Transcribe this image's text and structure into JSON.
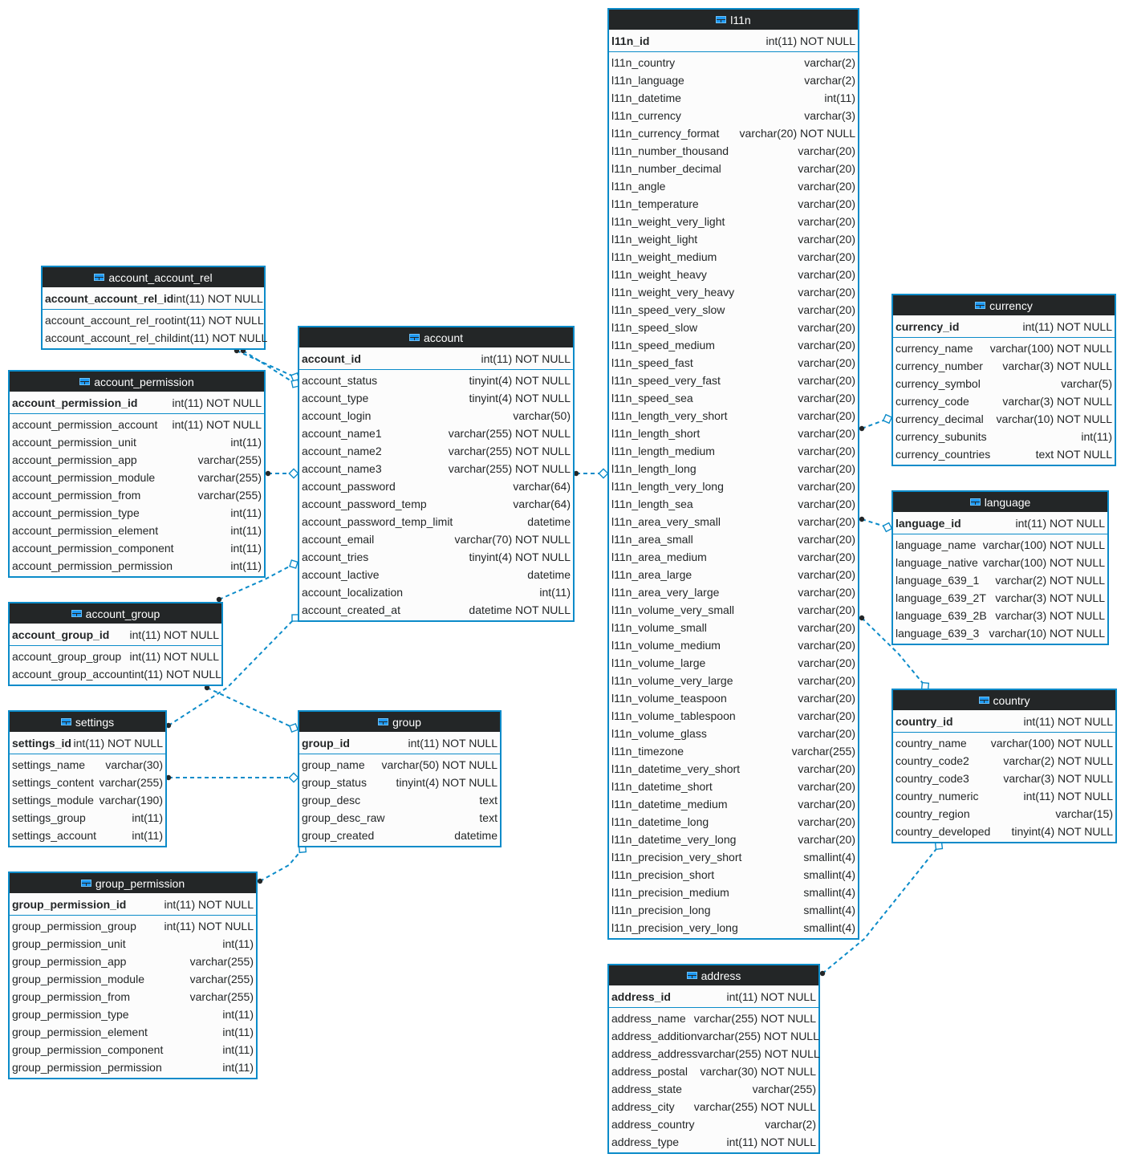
{
  "colors": {
    "border": "#0b8bc9",
    "header": "#232627",
    "link": "#0b8bc9",
    "icon": "#1d99f3"
  },
  "tables": [
    {
      "name": "account_account_rel",
      "pk": {
        "name": "account_account_rel_id",
        "type": "int(11) NOT NULL"
      },
      "columns": [
        {
          "name": "account_account_rel_root",
          "type": "int(11) NOT NULL"
        },
        {
          "name": "account_account_rel_child",
          "type": "int(11) NOT NULL"
        }
      ]
    },
    {
      "name": "account_permission",
      "pk": {
        "name": "account_permission_id",
        "type": "int(11) NOT NULL"
      },
      "columns": [
        {
          "name": "account_permission_account",
          "type": "int(11) NOT NULL"
        },
        {
          "name": "account_permission_unit",
          "type": "int(11)"
        },
        {
          "name": "account_permission_app",
          "type": "varchar(255)"
        },
        {
          "name": "account_permission_module",
          "type": "varchar(255)"
        },
        {
          "name": "account_permission_from",
          "type": "varchar(255)"
        },
        {
          "name": "account_permission_type",
          "type": "int(11)"
        },
        {
          "name": "account_permission_element",
          "type": "int(11)"
        },
        {
          "name": "account_permission_component",
          "type": "int(11)"
        },
        {
          "name": "account_permission_permission",
          "type": "int(11)"
        }
      ]
    },
    {
      "name": "account_group",
      "pk": {
        "name": "account_group_id",
        "type": "int(11) NOT NULL"
      },
      "columns": [
        {
          "name": "account_group_group",
          "type": "int(11) NOT NULL"
        },
        {
          "name": "account_group_account",
          "type": "int(11) NOT NULL"
        }
      ]
    },
    {
      "name": "settings",
      "pk": {
        "name": "settings_id",
        "type": "int(11) NOT NULL"
      },
      "columns": [
        {
          "name": "settings_name",
          "type": "varchar(30)"
        },
        {
          "name": "settings_content",
          "type": "varchar(255)"
        },
        {
          "name": "settings_module",
          "type": "varchar(190)"
        },
        {
          "name": "settings_group",
          "type": "int(11)"
        },
        {
          "name": "settings_account",
          "type": "int(11)"
        }
      ]
    },
    {
      "name": "group_permission",
      "pk": {
        "name": "group_permission_id",
        "type": "int(11) NOT NULL"
      },
      "columns": [
        {
          "name": "group_permission_group",
          "type": "int(11) NOT NULL"
        },
        {
          "name": "group_permission_unit",
          "type": "int(11)"
        },
        {
          "name": "group_permission_app",
          "type": "varchar(255)"
        },
        {
          "name": "group_permission_module",
          "type": "varchar(255)"
        },
        {
          "name": "group_permission_from",
          "type": "varchar(255)"
        },
        {
          "name": "group_permission_type",
          "type": "int(11)"
        },
        {
          "name": "group_permission_element",
          "type": "int(11)"
        },
        {
          "name": "group_permission_component",
          "type": "int(11)"
        },
        {
          "name": "group_permission_permission",
          "type": "int(11)"
        }
      ]
    },
    {
      "name": "account",
      "pk": {
        "name": "account_id",
        "type": "int(11) NOT NULL"
      },
      "columns": [
        {
          "name": "account_status",
          "type": "tinyint(4) NOT NULL"
        },
        {
          "name": "account_type",
          "type": "tinyint(4) NOT NULL"
        },
        {
          "name": "account_login",
          "type": "varchar(50)"
        },
        {
          "name": "account_name1",
          "type": "varchar(255) NOT NULL"
        },
        {
          "name": "account_name2",
          "type": "varchar(255) NOT NULL"
        },
        {
          "name": "account_name3",
          "type": "varchar(255) NOT NULL"
        },
        {
          "name": "account_password",
          "type": "varchar(64)"
        },
        {
          "name": "account_password_temp",
          "type": "varchar(64)"
        },
        {
          "name": "account_password_temp_limit",
          "type": "datetime"
        },
        {
          "name": "account_email",
          "type": "varchar(70) NOT NULL"
        },
        {
          "name": "account_tries",
          "type": "tinyint(4) NOT NULL"
        },
        {
          "name": "account_lactive",
          "type": "datetime"
        },
        {
          "name": "account_localization",
          "type": "int(11)"
        },
        {
          "name": "account_created_at",
          "type": "datetime NOT NULL"
        }
      ]
    },
    {
      "name": "group",
      "pk": {
        "name": "group_id",
        "type": "int(11) NOT NULL"
      },
      "columns": [
        {
          "name": "group_name",
          "type": "varchar(50) NOT NULL"
        },
        {
          "name": "group_status",
          "type": "tinyint(4) NOT NULL"
        },
        {
          "name": "group_desc",
          "type": "text"
        },
        {
          "name": "group_desc_raw",
          "type": "text"
        },
        {
          "name": "group_created",
          "type": "datetime"
        }
      ]
    },
    {
      "name": "l11n",
      "pk": {
        "name": "l11n_id",
        "type": "int(11) NOT NULL"
      },
      "columns": [
        {
          "name": "l11n_country",
          "type": "varchar(2)"
        },
        {
          "name": "l11n_language",
          "type": "varchar(2)"
        },
        {
          "name": "l11n_datetime",
          "type": "int(11)"
        },
        {
          "name": "l11n_currency",
          "type": "varchar(3)"
        },
        {
          "name": "l11n_currency_format",
          "type": "varchar(20) NOT NULL"
        },
        {
          "name": "l11n_number_thousand",
          "type": "varchar(20)"
        },
        {
          "name": "l11n_number_decimal",
          "type": "varchar(20)"
        },
        {
          "name": "l11n_angle",
          "type": "varchar(20)"
        },
        {
          "name": "l11n_temperature",
          "type": "varchar(20)"
        },
        {
          "name": "l11n_weight_very_light",
          "type": "varchar(20)"
        },
        {
          "name": "l11n_weight_light",
          "type": "varchar(20)"
        },
        {
          "name": "l11n_weight_medium",
          "type": "varchar(20)"
        },
        {
          "name": "l11n_weight_heavy",
          "type": "varchar(20)"
        },
        {
          "name": "l11n_weight_very_heavy",
          "type": "varchar(20)"
        },
        {
          "name": "l11n_speed_very_slow",
          "type": "varchar(20)"
        },
        {
          "name": "l11n_speed_slow",
          "type": "varchar(20)"
        },
        {
          "name": "l11n_speed_medium",
          "type": "varchar(20)"
        },
        {
          "name": "l11n_speed_fast",
          "type": "varchar(20)"
        },
        {
          "name": "l11n_speed_very_fast",
          "type": "varchar(20)"
        },
        {
          "name": "l11n_speed_sea",
          "type": "varchar(20)"
        },
        {
          "name": "l11n_length_very_short",
          "type": "varchar(20)"
        },
        {
          "name": "l11n_length_short",
          "type": "varchar(20)"
        },
        {
          "name": "l11n_length_medium",
          "type": "varchar(20)"
        },
        {
          "name": "l11n_length_long",
          "type": "varchar(20)"
        },
        {
          "name": "l11n_length_very_long",
          "type": "varchar(20)"
        },
        {
          "name": "l11n_length_sea",
          "type": "varchar(20)"
        },
        {
          "name": "l11n_area_very_small",
          "type": "varchar(20)"
        },
        {
          "name": "l11n_area_small",
          "type": "varchar(20)"
        },
        {
          "name": "l11n_area_medium",
          "type": "varchar(20)"
        },
        {
          "name": "l11n_area_large",
          "type": "varchar(20)"
        },
        {
          "name": "l11n_area_very_large",
          "type": "varchar(20)"
        },
        {
          "name": "l11n_volume_very_small",
          "type": "varchar(20)"
        },
        {
          "name": "l11n_volume_small",
          "type": "varchar(20)"
        },
        {
          "name": "l11n_volume_medium",
          "type": "varchar(20)"
        },
        {
          "name": "l11n_volume_large",
          "type": "varchar(20)"
        },
        {
          "name": "l11n_volume_very_large",
          "type": "varchar(20)"
        },
        {
          "name": "l11n_volume_teaspoon",
          "type": "varchar(20)"
        },
        {
          "name": "l11n_volume_tablespoon",
          "type": "varchar(20)"
        },
        {
          "name": "l11n_volume_glass",
          "type": "varchar(20)"
        },
        {
          "name": "l11n_timezone",
          "type": "varchar(255)"
        },
        {
          "name": "l11n_datetime_very_short",
          "type": "varchar(20)"
        },
        {
          "name": "l11n_datetime_short",
          "type": "varchar(20)"
        },
        {
          "name": "l11n_datetime_medium",
          "type": "varchar(20)"
        },
        {
          "name": "l11n_datetime_long",
          "type": "varchar(20)"
        },
        {
          "name": "l11n_datetime_very_long",
          "type": "varchar(20)"
        },
        {
          "name": "l11n_precision_very_short",
          "type": "smallint(4)"
        },
        {
          "name": "l11n_precision_short",
          "type": "smallint(4)"
        },
        {
          "name": "l11n_precision_medium",
          "type": "smallint(4)"
        },
        {
          "name": "l11n_precision_long",
          "type": "smallint(4)"
        },
        {
          "name": "l11n_precision_very_long",
          "type": "smallint(4)"
        }
      ]
    },
    {
      "name": "currency",
      "pk": {
        "name": "currency_id",
        "type": "int(11) NOT NULL"
      },
      "columns": [
        {
          "name": "currency_name",
          "type": "varchar(100) NOT NULL"
        },
        {
          "name": "currency_number",
          "type": "varchar(3) NOT NULL"
        },
        {
          "name": "currency_symbol",
          "type": "varchar(5)"
        },
        {
          "name": "currency_code",
          "type": "varchar(3) NOT NULL"
        },
        {
          "name": "currency_decimal",
          "type": "varchar(10) NOT NULL"
        },
        {
          "name": "currency_subunits",
          "type": "int(11)"
        },
        {
          "name": "currency_countries",
          "type": "text NOT NULL"
        }
      ]
    },
    {
      "name": "language",
      "pk": {
        "name": "language_id",
        "type": "int(11) NOT NULL"
      },
      "columns": [
        {
          "name": "language_name",
          "type": "varchar(100) NOT NULL"
        },
        {
          "name": "language_native",
          "type": "varchar(100) NOT NULL"
        },
        {
          "name": "language_639_1",
          "type": "varchar(2) NOT NULL"
        },
        {
          "name": "language_639_2T",
          "type": "varchar(3) NOT NULL"
        },
        {
          "name": "language_639_2B",
          "type": "varchar(3) NOT NULL"
        },
        {
          "name": "language_639_3",
          "type": "varchar(10) NOT NULL"
        }
      ]
    },
    {
      "name": "country",
      "pk": {
        "name": "country_id",
        "type": "int(11) NOT NULL"
      },
      "columns": [
        {
          "name": "country_name",
          "type": "varchar(100) NOT NULL"
        },
        {
          "name": "country_code2",
          "type": "varchar(2) NOT NULL"
        },
        {
          "name": "country_code3",
          "type": "varchar(3) NOT NULL"
        },
        {
          "name": "country_numeric",
          "type": "int(11) NOT NULL"
        },
        {
          "name": "country_region",
          "type": "varchar(15)"
        },
        {
          "name": "country_developed",
          "type": "tinyint(4) NOT NULL"
        }
      ]
    },
    {
      "name": "address",
      "pk": {
        "name": "address_id",
        "type": "int(11) NOT NULL"
      },
      "columns": [
        {
          "name": "address_name",
          "type": "varchar(255) NOT NULL"
        },
        {
          "name": "address_addition",
          "type": "varchar(255) NOT NULL"
        },
        {
          "name": "address_address",
          "type": "varchar(255) NOT NULL"
        },
        {
          "name": "address_postal",
          "type": "varchar(30) NOT NULL"
        },
        {
          "name": "address_state",
          "type": "varchar(255)"
        },
        {
          "name": "address_city",
          "type": "varchar(255) NOT NULL"
        },
        {
          "name": "address_country",
          "type": "varchar(2)"
        },
        {
          "name": "address_type",
          "type": "int(11) NOT NULL"
        }
      ]
    }
  ]
}
